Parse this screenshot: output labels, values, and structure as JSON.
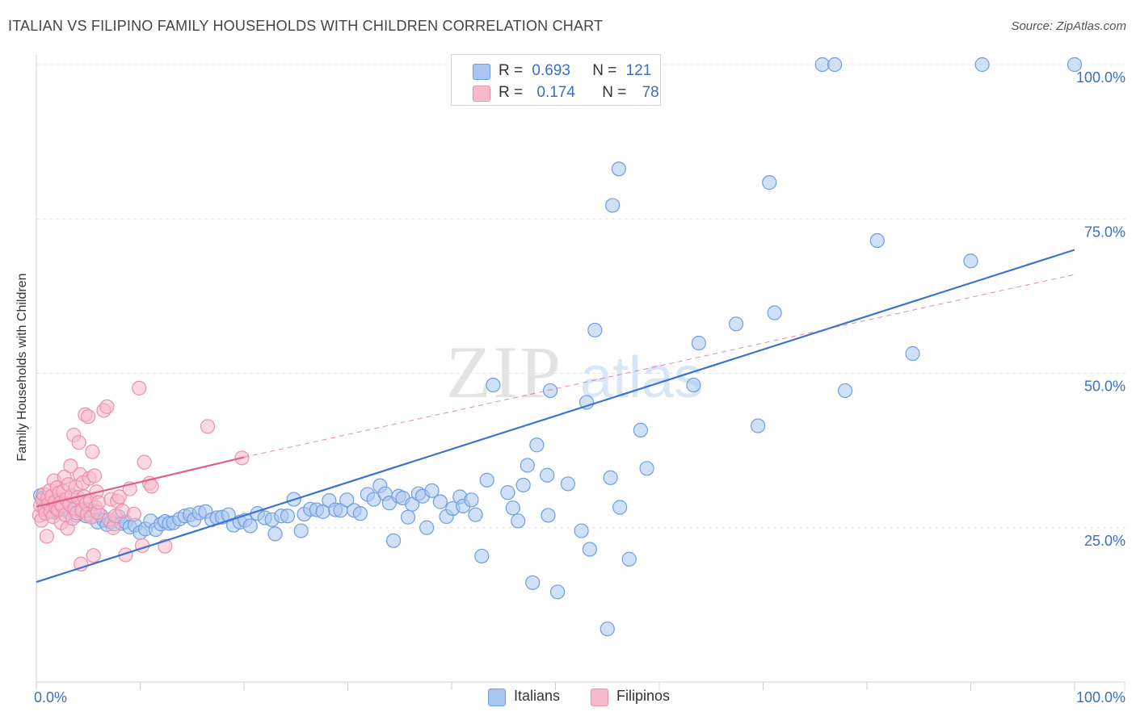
{
  "header": {
    "title": "ITALIAN VS FILIPINO FAMILY HOUSEHOLDS WITH CHILDREN CORRELATION CHART",
    "source": "Source: ZipAtlas.com"
  },
  "watermark": {
    "zip": "ZIP",
    "atlas": "atlas"
  },
  "legend": {
    "rows": [
      {
        "r_label": "R =",
        "r_value": "0.693",
        "n_label": "N =",
        "n_value": "121",
        "color": "#a9c6f0",
        "stroke": "#6f9ee0"
      },
      {
        "r_label": "R =",
        "r_value": "0.174",
        "n_label": "N =",
        "n_value": "78",
        "color": "#f7b9cc",
        "stroke": "#ec8fab"
      }
    ],
    "bottom": [
      {
        "label": "Italians",
        "color": "#a9c6f0",
        "stroke": "#6f9ee0"
      },
      {
        "label": "Filipinos",
        "color": "#f7b9cc",
        "stroke": "#ec8fab"
      }
    ]
  },
  "chart_data": {
    "type": "scatter",
    "title": "ITALIAN VS FILIPINO FAMILY HOUSEHOLDS WITH CHILDREN CORRELATION CHART",
    "xlabel": "",
    "ylabel": "Family Households with Children",
    "xlim": [
      0,
      100
    ],
    "ylim": [
      0,
      100
    ],
    "x_tick_labels": [
      "0.0%",
      "100.0%"
    ],
    "y_tick_labels": [
      "25.0%",
      "50.0%",
      "75.0%",
      "100.0%"
    ],
    "y_tick_values": [
      25,
      50,
      75,
      100
    ],
    "grid": "horizontal dashed",
    "series": [
      {
        "name": "Italians",
        "color": "#6f9ee0",
        "fill": "#a9c6f0",
        "trend": {
          "x": [
            0,
            100
          ],
          "y": [
            16.2,
            70.0
          ],
          "color": "#3a73d0"
        },
        "points": [
          [
            0.4,
            30.2
          ],
          [
            0.6,
            29.8
          ],
          [
            0.8,
            28.4
          ],
          [
            1.0,
            29.0
          ],
          [
            1.2,
            28.6
          ],
          [
            1.4,
            27.8
          ],
          [
            1.6,
            28.9
          ],
          [
            1.8,
            27.5
          ],
          [
            2.0,
            29.5
          ],
          [
            2.2,
            28.0
          ],
          [
            2.5,
            29.2
          ],
          [
            2.8,
            27.9
          ],
          [
            3.0,
            28.8
          ],
          [
            3.2,
            27.4
          ],
          [
            3.5,
            28.1
          ],
          [
            3.8,
            27.0
          ],
          [
            4.0,
            29.1
          ],
          [
            4.2,
            27.6
          ],
          [
            4.5,
            28.2
          ],
          [
            4.8,
            26.9
          ],
          [
            5.0,
            27.8
          ],
          [
            5.3,
            26.8
          ],
          [
            5.6,
            27.7
          ],
          [
            5.9,
            25.9
          ],
          [
            6.2,
            27.0
          ],
          [
            6.5,
            26.2
          ],
          [
            6.8,
            25.5
          ],
          [
            7.2,
            25.9
          ],
          [
            7.5,
            25.6
          ],
          [
            7.9,
            26.8
          ],
          [
            8.2,
            25.7
          ],
          [
            8.6,
            25.9
          ],
          [
            9.0,
            25.1
          ],
          [
            9.5,
            25.4
          ],
          [
            10.0,
            24.2
          ],
          [
            10.5,
            24.8
          ],
          [
            11.0,
            26.1
          ],
          [
            11.5,
            24.7
          ],
          [
            12.0,
            25.6
          ],
          [
            12.4,
            26.0
          ],
          [
            12.8,
            25.7
          ],
          [
            13.2,
            25.8
          ],
          [
            13.8,
            26.4
          ],
          [
            14.3,
            26.9
          ],
          [
            14.8,
            27.1
          ],
          [
            15.2,
            26.3
          ],
          [
            15.7,
            27.4
          ],
          [
            16.3,
            27.6
          ],
          [
            16.9,
            26.3
          ],
          [
            17.4,
            26.6
          ],
          [
            17.9,
            26.7
          ],
          [
            18.5,
            27.1
          ],
          [
            19.0,
            25.4
          ],
          [
            19.6,
            25.9
          ],
          [
            20.1,
            26.2
          ],
          [
            20.6,
            25.3
          ],
          [
            21.3,
            27.3
          ],
          [
            22.0,
            26.6
          ],
          [
            22.7,
            26.3
          ],
          [
            23.0,
            24.0
          ],
          [
            23.6,
            26.9
          ],
          [
            24.2,
            26.9
          ],
          [
            24.8,
            29.6
          ],
          [
            25.5,
            24.5
          ],
          [
            25.8,
            27.2
          ],
          [
            26.4,
            28.0
          ],
          [
            27.0,
            27.9
          ],
          [
            27.6,
            27.6
          ],
          [
            28.2,
            29.4
          ],
          [
            28.8,
            27.9
          ],
          [
            29.3,
            27.8
          ],
          [
            29.9,
            29.5
          ],
          [
            30.6,
            27.8
          ],
          [
            31.2,
            27.3
          ],
          [
            31.9,
            30.4
          ],
          [
            32.5,
            29.6
          ],
          [
            33.1,
            31.8
          ],
          [
            33.6,
            30.5
          ],
          [
            34.0,
            29.0
          ],
          [
            34.4,
            22.9
          ],
          [
            34.9,
            30.1
          ],
          [
            35.3,
            29.8
          ],
          [
            35.8,
            26.7
          ],
          [
            36.2,
            28.8
          ],
          [
            36.8,
            30.5
          ],
          [
            37.2,
            30.1
          ],
          [
            37.6,
            25.0
          ],
          [
            38.1,
            31.0
          ],
          [
            38.9,
            29.2
          ],
          [
            39.5,
            26.8
          ],
          [
            40.1,
            28.1
          ],
          [
            40.8,
            30.0
          ],
          [
            41.1,
            28.5
          ],
          [
            41.9,
            29.5
          ],
          [
            42.3,
            27.1
          ],
          [
            42.9,
            20.4
          ],
          [
            43.4,
            32.7
          ],
          [
            44.0,
            48.1
          ],
          [
            45.4,
            30.7
          ],
          [
            45.9,
            28.2
          ],
          [
            46.4,
            26.1
          ],
          [
            46.9,
            31.9
          ],
          [
            47.3,
            35.1
          ],
          [
            47.8,
            16.1
          ],
          [
            48.2,
            38.4
          ],
          [
            49.2,
            33.5
          ],
          [
            49.3,
            27.0
          ],
          [
            50.2,
            14.6
          ],
          [
            49.5,
            47.2
          ],
          [
            51.2,
            32.1
          ],
          [
            52.5,
            24.5
          ],
          [
            53.0,
            45.3
          ],
          [
            53.3,
            21.5
          ],
          [
            53.8,
            57.0
          ],
          [
            55.0,
            8.6
          ],
          [
            55.3,
            33.1
          ],
          [
            55.5,
            77.2
          ],
          [
            56.1,
            83.1
          ],
          [
            56.2,
            28.3
          ],
          [
            57.1,
            19.9
          ],
          [
            58.2,
            40.8
          ],
          [
            58.8,
            34.6
          ],
          [
            63.3,
            48.1
          ],
          [
            63.8,
            54.9
          ],
          [
            67.4,
            58.0
          ],
          [
            69.5,
            41.5
          ],
          [
            70.6,
            80.9
          ],
          [
            71.1,
            59.8
          ],
          [
            75.7,
            100.0
          ],
          [
            76.9,
            100.0
          ],
          [
            77.9,
            47.2
          ],
          [
            81.0,
            71.5
          ],
          [
            84.4,
            53.2
          ],
          [
            90.0,
            68.2
          ],
          [
            91.1,
            100.0
          ],
          [
            100.0,
            100.0
          ]
        ]
      },
      {
        "name": "Filipinos",
        "color": "#ec8fab",
        "fill": "#f7b9cc",
        "trend": {
          "x": [
            0,
            20
          ],
          "y": [
            28.4,
            36.4
          ],
          "color": "#e0608a",
          "dashed_extension": {
            "x": [
              20,
              100
            ],
            "y": [
              36.4,
              66.0
            ]
          }
        },
        "points": [
          [
            0.3,
            27.0
          ],
          [
            0.4,
            28.6
          ],
          [
            0.5,
            26.2
          ],
          [
            0.6,
            29.5
          ],
          [
            0.7,
            30.4
          ],
          [
            0.8,
            28.0
          ],
          [
            0.9,
            27.3
          ],
          [
            1.0,
            23.6
          ],
          [
            1.1,
            29.8
          ],
          [
            1.2,
            28.9
          ],
          [
            1.3,
            31.0
          ],
          [
            1.4,
            27.6
          ],
          [
            1.5,
            30.1
          ],
          [
            1.6,
            26.8
          ],
          [
            1.7,
            32.6
          ],
          [
            1.8,
            29.2
          ],
          [
            1.9,
            28.2
          ],
          [
            2.0,
            31.5
          ],
          [
            2.1,
            27.9
          ],
          [
            2.2,
            30.6
          ],
          [
            2.3,
            29.0
          ],
          [
            2.4,
            25.8
          ],
          [
            2.5,
            28.5
          ],
          [
            2.6,
            30.9
          ],
          [
            2.7,
            33.2
          ],
          [
            2.8,
            27.1
          ],
          [
            2.9,
            29.6
          ],
          [
            3.0,
            24.9
          ],
          [
            3.1,
            32.0
          ],
          [
            3.2,
            28.8
          ],
          [
            3.3,
            35.0
          ],
          [
            3.4,
            30.2
          ],
          [
            3.5,
            26.5
          ],
          [
            3.6,
            40.0
          ],
          [
            3.7,
            28.1
          ],
          [
            3.8,
            31.6
          ],
          [
            3.9,
            27.4
          ],
          [
            4.0,
            29.9
          ],
          [
            4.1,
            38.8
          ],
          [
            4.2,
            33.6
          ],
          [
            4.3,
            19.1
          ],
          [
            4.4,
            27.8
          ],
          [
            4.5,
            32.3
          ],
          [
            4.6,
            30.0
          ],
          [
            4.7,
            43.3
          ],
          [
            4.8,
            28.9
          ],
          [
            4.9,
            27.2
          ],
          [
            5.0,
            43.0
          ],
          [
            5.1,
            33.0
          ],
          [
            5.2,
            29.4
          ],
          [
            5.3,
            26.7
          ],
          [
            5.4,
            37.3
          ],
          [
            5.5,
            20.5
          ],
          [
            5.6,
            33.4
          ],
          [
            5.7,
            28.3
          ],
          [
            5.8,
            30.8
          ],
          [
            5.9,
            27.5
          ],
          [
            6.0,
            29.1
          ],
          [
            6.5,
            44.0
          ],
          [
            6.8,
            44.6
          ],
          [
            7.0,
            26.3
          ],
          [
            7.2,
            29.6
          ],
          [
            7.4,
            25.0
          ],
          [
            7.6,
            26.9
          ],
          [
            7.8,
            29.3
          ],
          [
            8.0,
            30.0
          ],
          [
            8.3,
            27.7
          ],
          [
            8.6,
            20.6
          ],
          [
            9.0,
            31.3
          ],
          [
            9.4,
            27.2
          ],
          [
            9.9,
            47.6
          ],
          [
            10.2,
            22.1
          ],
          [
            10.4,
            35.6
          ],
          [
            10.9,
            32.2
          ],
          [
            11.1,
            31.7
          ],
          [
            12.4,
            22.0
          ],
          [
            16.5,
            41.4
          ],
          [
            19.8,
            36.3
          ]
        ]
      }
    ]
  }
}
